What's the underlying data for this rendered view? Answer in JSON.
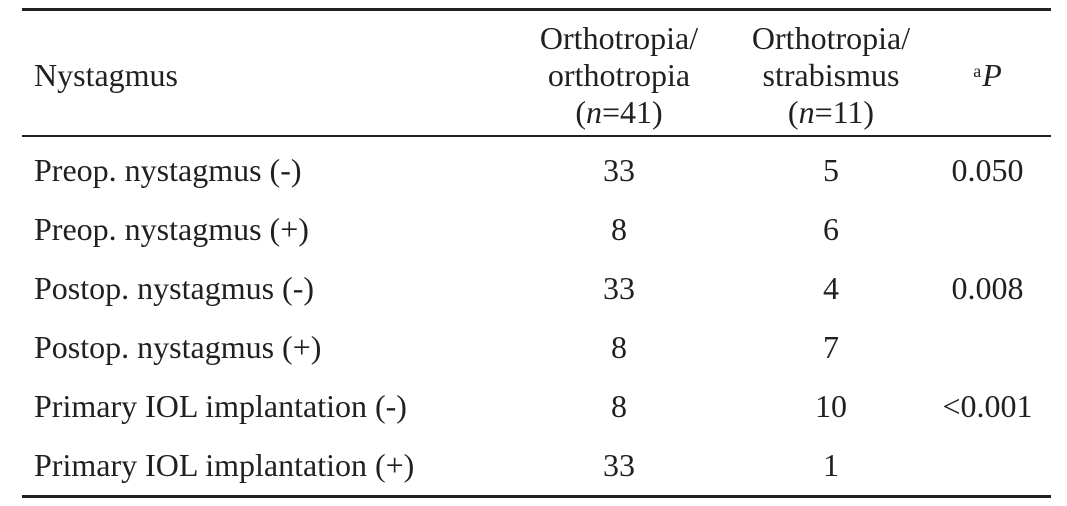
{
  "table": {
    "headers": {
      "col0": "Nystagmus",
      "col1": {
        "line1": "Orthotropia/",
        "line2": "orthotropia",
        "n_var": "n",
        "n_rest": "=41"
      },
      "col2": {
        "line1": "Orthotropia/",
        "line2": "strabismus",
        "n_var": "n",
        "n_rest": "=11"
      },
      "col3": {
        "sup": "a",
        "label": "P"
      }
    },
    "rows": [
      {
        "label": "Preop. nystagmus (-)",
        "ortho": "33",
        "strab": "5",
        "p": "0.050"
      },
      {
        "label": "Preop. nystagmus (+)",
        "ortho": "8",
        "strab": "6",
        "p": ""
      },
      {
        "label": "Postop. nystagmus (-)",
        "ortho": "33",
        "strab": "4",
        "p": "0.008"
      },
      {
        "label": "Postop. nystagmus (+)",
        "ortho": "8",
        "strab": "7",
        "p": ""
      },
      {
        "label": "Primary IOL implantation (-)",
        "ortho": "8",
        "strab": "10",
        "p": "<0.001"
      },
      {
        "label": "Primary IOL implantation (+)",
        "ortho": "33",
        "strab": "1",
        "p": ""
      }
    ]
  }
}
